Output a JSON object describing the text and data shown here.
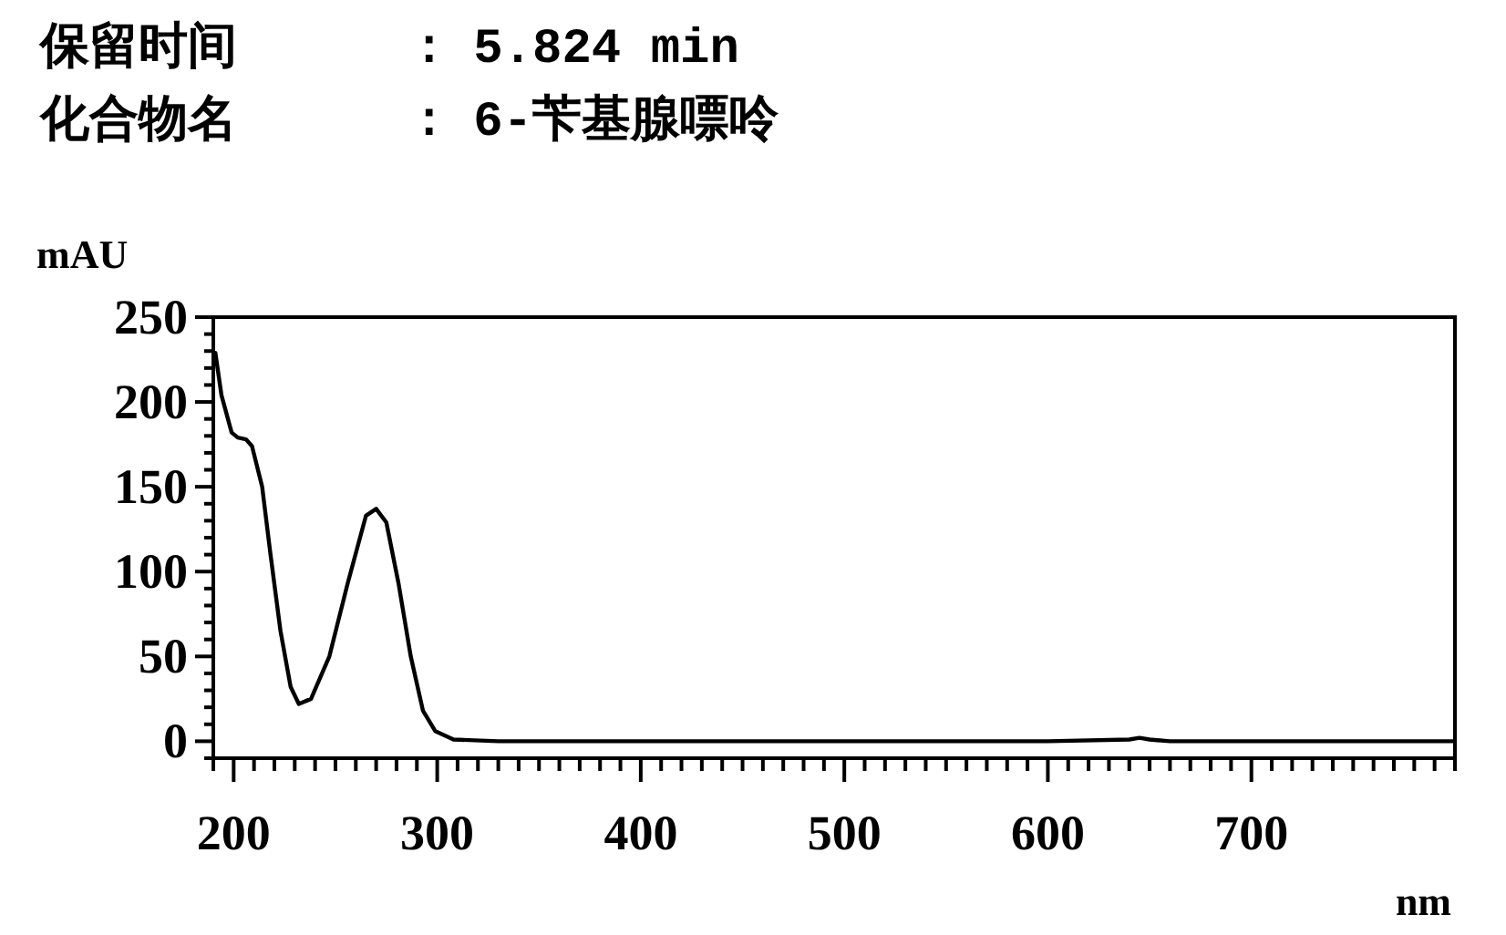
{
  "chart_data": {
    "type": "line",
    "title": "保留时间      : 5.824 min",
    "subtitle": "化合物名      : 6-苄基腺嘌呤",
    "xlabel": "nm",
    "ylabel": "mAU",
    "series": [
      {
        "color": "#000000",
        "x": [
          191,
          194,
          199,
          202,
          206,
          209,
          214,
          218,
          223,
          228,
          232,
          238,
          247,
          256,
          265,
          270,
          275,
          281,
          287,
          293,
          299,
          308,
          330,
          400,
          500,
          600,
          640,
          645,
          650,
          660,
          700,
          800
        ],
        "values": [
          229,
          204,
          182,
          179,
          178,
          174,
          150,
          111,
          65,
          32,
          22,
          25,
          50,
          93,
          133,
          137,
          129,
          93,
          50,
          18,
          6,
          1,
          0,
          0,
          0,
          0,
          1,
          2,
          1,
          0,
          0,
          0
        ]
      }
    ],
    "xlim": [
      190,
      800
    ],
    "ylim": [
      -10,
      250
    ],
    "xticks": [
      {
        "value": 190,
        "label": null
      },
      200,
      {
        "value": 210,
        "label": null
      },
      {
        "value": 220,
        "label": null
      },
      {
        "value": 230,
        "label": null
      },
      {
        "value": 240,
        "label": null
      },
      {
        "value": 250,
        "label": null
      },
      {
        "value": 260,
        "label": null
      },
      {
        "value": 270,
        "label": null
      },
      {
        "value": 280,
        "label": null
      },
      {
        "value": 290,
        "label": null
      },
      300,
      {
        "value": 310,
        "label": null
      },
      {
        "value": 320,
        "label": null
      },
      {
        "value": 330,
        "label": null
      },
      {
        "value": 340,
        "label": null
      },
      {
        "value": 350,
        "label": null
      },
      {
        "value": 360,
        "label": null
      },
      {
        "value": 370,
        "label": null
      },
      {
        "value": 380,
        "label": null
      },
      {
        "value": 390,
        "label": null
      },
      400,
      {
        "value": 410,
        "label": null
      },
      {
        "value": 420,
        "label": null
      },
      {
        "value": 430,
        "label": null
      },
      {
        "value": 440,
        "label": null
      },
      {
        "value": 450,
        "label": null
      },
      {
        "value": 460,
        "label": null
      },
      {
        "value": 470,
        "label": null
      },
      {
        "value": 480,
        "label": null
      },
      {
        "value": 490,
        "label": null
      },
      500,
      {
        "value": 510,
        "label": null
      },
      {
        "value": 520,
        "label": null
      },
      {
        "value": 530,
        "label": null
      },
      {
        "value": 540,
        "label": null
      },
      {
        "value": 550,
        "label": null
      },
      {
        "value": 560,
        "label": null
      },
      {
        "value": 570,
        "label": null
      },
      {
        "value": 580,
        "label": null
      },
      {
        "value": 590,
        "label": null
      },
      600,
      {
        "value": 610,
        "label": null
      },
      {
        "value": 620,
        "label": null
      },
      {
        "value": 630,
        "label": null
      },
      {
        "value": 640,
        "label": null
      },
      {
        "value": 650,
        "label": null
      },
      {
        "value": 660,
        "label": null
      },
      {
        "value": 670,
        "label": null
      },
      {
        "value": 680,
        "label": null
      },
      {
        "value": 690,
        "label": null
      },
      700,
      {
        "value": 710,
        "label": null
      },
      {
        "value": 720,
        "label": null
      },
      {
        "value": 730,
        "label": null
      },
      {
        "value": 740,
        "label": null
      },
      {
        "value": 750,
        "label": null
      },
      {
        "value": 760,
        "label": null
      },
      {
        "value": 770,
        "label": null
      },
      {
        "value": 780,
        "label": null
      },
      {
        "value": 790,
        "label": null
      },
      {
        "value": 800,
        "label": null
      }
    ],
    "yticks": [
      {
        "value": -10,
        "label": null
      },
      0,
      {
        "value": 10,
        "label": null
      },
      {
        "value": 20,
        "label": null
      },
      {
        "value": 30,
        "label": null
      },
      {
        "value": 40,
        "label": null
      },
      50,
      {
        "value": 60,
        "label": null
      },
      {
        "value": 70,
        "label": null
      },
      {
        "value": 80,
        "label": null
      },
      {
        "value": 90,
        "label": null
      },
      100,
      {
        "value": 110,
        "label": null
      },
      {
        "value": 120,
        "label": null
      },
      {
        "value": 130,
        "label": null
      },
      {
        "value": 140,
        "label": null
      },
      150,
      {
        "value": 160,
        "label": null
      },
      {
        "value": 170,
        "label": null
      },
      {
        "value": 180,
        "label": null
      },
      {
        "value": 190,
        "label": null
      },
      200,
      {
        "value": 210,
        "label": null
      },
      {
        "value": 220,
        "label": null
      },
      {
        "value": 230,
        "label": null
      },
      {
        "value": 240,
        "label": null
      },
      250
    ],
    "grid": false,
    "marker": "none",
    "line_style": "solid"
  }
}
